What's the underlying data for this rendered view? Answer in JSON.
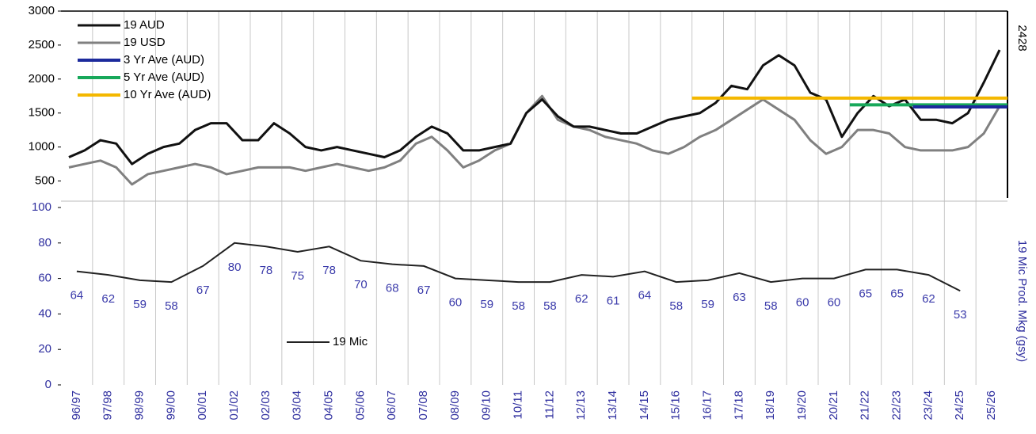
{
  "chart_data": [
    {
      "type": "line",
      "annotation": "2428",
      "ylim": [
        250,
        3000
      ],
      "yticks": [
        500,
        1000,
        1500,
        2000,
        2500,
        3000
      ],
      "series": [
        {
          "name": "19 AUD",
          "color": "#111111",
          "values": [
            850,
            950,
            1100,
            1050,
            750,
            900,
            1000,
            1050,
            1250,
            1350,
            1350,
            1100,
            1100,
            1350,
            1200,
            1000,
            950,
            1000,
            950,
            900,
            850,
            950,
            1150,
            1300,
            1200,
            950,
            950,
            1000,
            1050,
            1500,
            1700,
            1450,
            1300,
            1300,
            1250,
            1200,
            1200,
            1300,
            1400,
            1450,
            1500,
            1650,
            1900,
            1850,
            2200,
            2350,
            2200,
            1800,
            1700,
            1150,
            1500,
            1750,
            1600,
            1700,
            1400,
            1400,
            1350,
            1500,
            1950,
            2428
          ]
        },
        {
          "name": "19 USD",
          "color": "#808080",
          "values": [
            700,
            750,
            800,
            700,
            450,
            600,
            650,
            700,
            750,
            700,
            600,
            650,
            700,
            700,
            700,
            650,
            700,
            750,
            700,
            650,
            700,
            800,
            1050,
            1150,
            950,
            700,
            800,
            950,
            1050,
            1500,
            1750,
            1400,
            1300,
            1250,
            1150,
            1100,
            1050,
            950,
            900,
            1000,
            1150,
            1250,
            1400,
            1550,
            1700,
            1550,
            1400,
            1100,
            900,
            1000,
            1250,
            1250,
            1200,
            1000,
            950,
            950,
            950,
            1000,
            1200,
            1600
          ]
        }
      ],
      "averages": [
        {
          "name": "3 Yr Ave (AUD)",
          "color": "#1c2a9c",
          "value": 1590,
          "start": "23/24"
        },
        {
          "name": "5 Yr Ave (AUD)",
          "color": "#17a85a",
          "value": 1620,
          "start": "21/22"
        },
        {
          "name": "10 Yr Ave (AUD)",
          "color": "#f4b800",
          "value": 1720,
          "start": "16/17"
        }
      ]
    },
    {
      "type": "line",
      "y2_label": "19 Mic Prod. Mkg (gsy)",
      "categories": [
        "96/97",
        "97/98",
        "98/99",
        "99/00",
        "00/01",
        "01/02",
        "02/03",
        "03/04",
        "04/05",
        "05/06",
        "06/07",
        "07/08",
        "08/09",
        "09/10",
        "10/11",
        "11/12",
        "12/13",
        "13/14",
        "14/15",
        "15/16",
        "16/17",
        "17/18",
        "18/19",
        "19/20",
        "20/21",
        "21/22",
        "22/23",
        "23/24",
        "24/25",
        "25/26"
      ],
      "ylim": [
        0,
        100
      ],
      "yticks": [
        0,
        20,
        40,
        60,
        80,
        100
      ],
      "series": [
        {
          "name": "19 Mic",
          "color": "#222222",
          "values": [
            64,
            62,
            59,
            58,
            67,
            80,
            78,
            75,
            78,
            70,
            68,
            67,
            60,
            59,
            58,
            58,
            62,
            61,
            64,
            58,
            59,
            63,
            58,
            60,
            60,
            65,
            65,
            62,
            53,
            null
          ]
        }
      ]
    }
  ]
}
